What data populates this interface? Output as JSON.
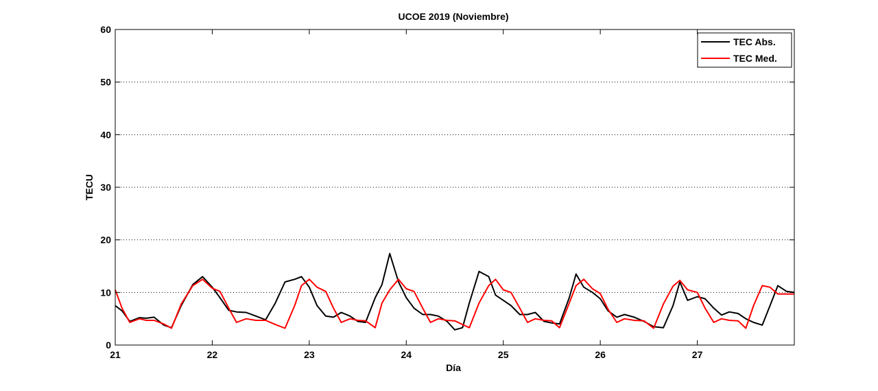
{
  "chart_data": {
    "type": "line",
    "title": "UCOE 2019 (Noviembre)",
    "xlabel": "Día",
    "ylabel": "TECU",
    "xlim": [
      21,
      28
    ],
    "ylim": [
      0,
      60
    ],
    "x_ticks": [
      21,
      22,
      23,
      24,
      25,
      26,
      27
    ],
    "x_tick_labels": [
      "21",
      "22",
      "23",
      "24",
      "25",
      "26",
      "27"
    ],
    "y_ticks": [
      0,
      10,
      20,
      30,
      40,
      50,
      60
    ],
    "y_tick_labels": [
      "0",
      "10",
      "20",
      "30",
      "40",
      "50",
      "60"
    ],
    "grid": "horizontal dotted",
    "legend_position": "top-right",
    "series": [
      {
        "name": "TEC Abs.",
        "color": "#000000",
        "x": [
          21.0,
          21.07,
          21.15,
          21.25,
          21.32,
          21.4,
          21.5,
          21.58,
          21.68,
          21.8,
          21.9,
          22.0,
          22.08,
          22.17,
          22.25,
          22.35,
          22.45,
          22.55,
          22.65,
          22.75,
          22.85,
          22.92,
          23.0,
          23.08,
          23.17,
          23.25,
          23.33,
          23.42,
          23.5,
          23.58,
          23.68,
          23.75,
          23.83,
          23.92,
          24.0,
          24.08,
          24.17,
          24.25,
          24.33,
          24.42,
          24.5,
          24.58,
          24.65,
          24.75,
          24.85,
          24.92,
          25.0,
          25.08,
          25.17,
          25.25,
          25.33,
          25.42,
          25.5,
          25.58,
          25.68,
          25.75,
          25.83,
          25.92,
          26.0,
          26.08,
          26.17,
          26.25,
          26.35,
          26.45,
          26.55,
          26.65,
          26.75,
          26.82,
          26.9,
          27.0,
          27.08,
          27.17,
          27.25,
          27.33,
          27.42,
          27.5,
          27.58,
          27.67,
          27.75,
          27.83,
          27.92,
          28.0
        ],
        "y": [
          7.5,
          6.5,
          4.5,
          5.2,
          5.1,
          5.3,
          3.8,
          3.3,
          7.5,
          11.5,
          13.0,
          11.0,
          9.0,
          6.6,
          6.3,
          6.2,
          5.5,
          4.8,
          8.0,
          12.0,
          12.5,
          13.0,
          11.0,
          7.5,
          5.5,
          5.3,
          6.2,
          5.5,
          4.5,
          4.3,
          9.0,
          11.5,
          17.4,
          12.0,
          9.0,
          7.0,
          5.8,
          5.8,
          5.5,
          4.5,
          2.9,
          3.3,
          8.0,
          14.0,
          13.0,
          9.5,
          8.5,
          7.5,
          5.8,
          5.8,
          6.2,
          4.5,
          4.2,
          4.0,
          9.0,
          13.5,
          11.0,
          10.0,
          8.8,
          6.5,
          5.3,
          5.8,
          5.3,
          4.5,
          3.5,
          3.3,
          7.5,
          12.0,
          8.5,
          9.2,
          8.8,
          7.0,
          5.7,
          6.3,
          6.0,
          5.0,
          4.3,
          3.8,
          7.5,
          11.3,
          10.2,
          10.0
        ]
      },
      {
        "name": "TEC Med.",
        "color": "#ff0000",
        "x": [
          21.0,
          21.07,
          21.15,
          21.25,
          21.32,
          21.4,
          21.5,
          21.58,
          21.68,
          21.8,
          21.9,
          22.0,
          22.08,
          22.17,
          22.25,
          22.35,
          22.45,
          22.55,
          22.65,
          22.75,
          22.85,
          22.92,
          23.0,
          23.08,
          23.17,
          23.25,
          23.33,
          23.42,
          23.5,
          23.58,
          23.68,
          23.75,
          23.83,
          23.92,
          24.0,
          24.08,
          24.17,
          24.25,
          24.33,
          24.42,
          24.5,
          24.58,
          24.65,
          24.75,
          24.85,
          24.92,
          25.0,
          25.08,
          25.17,
          25.25,
          25.33,
          25.42,
          25.5,
          25.58,
          25.68,
          25.75,
          25.83,
          25.92,
          26.0,
          26.08,
          26.17,
          26.25,
          26.35,
          26.45,
          26.55,
          26.65,
          26.75,
          26.82,
          26.9,
          27.0,
          27.08,
          27.17,
          27.25,
          27.33,
          27.42,
          27.5,
          27.58,
          27.67,
          27.75,
          27.83,
          27.92,
          28.0
        ],
        "y": [
          10.5,
          7.0,
          4.3,
          5.0,
          4.7,
          4.7,
          4.0,
          3.2,
          7.8,
          11.3,
          12.5,
          10.8,
          10.2,
          7.0,
          4.3,
          5.0,
          4.7,
          4.7,
          3.9,
          3.2,
          7.5,
          11.3,
          12.5,
          11.0,
          10.2,
          7.0,
          4.3,
          5.0,
          4.7,
          4.6,
          3.3,
          8.0,
          10.5,
          12.5,
          10.7,
          10.2,
          7.0,
          4.3,
          5.0,
          4.7,
          4.6,
          3.9,
          3.3,
          8.0,
          11.3,
          12.5,
          10.5,
          10.0,
          7.0,
          4.3,
          5.0,
          4.7,
          4.6,
          3.3,
          8.0,
          11.3,
          12.5,
          10.7,
          9.8,
          6.8,
          4.3,
          5.0,
          4.7,
          4.6,
          3.2,
          7.8,
          11.2,
          12.3,
          10.5,
          10.0,
          7.0,
          4.3,
          5.0,
          4.7,
          4.6,
          3.2,
          7.5,
          11.3,
          11.0,
          9.7,
          9.7,
          9.7
        ]
      }
    ]
  }
}
